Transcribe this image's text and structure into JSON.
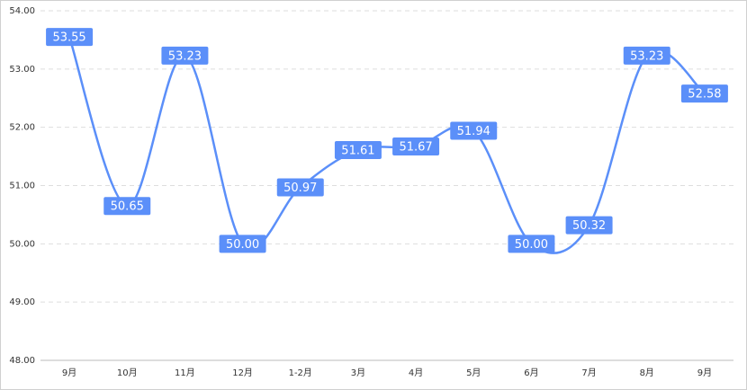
{
  "chart_data": {
    "type": "line",
    "categories": [
      "9月",
      "10月",
      "11月",
      "12月",
      "1-2月",
      "3月",
      "4月",
      "5月",
      "6月",
      "7月",
      "8月",
      "9月"
    ],
    "series": [
      {
        "color": "#5b8ff9",
        "values": [
          53.55,
          50.65,
          53.23,
          50,
          50.97,
          51.61,
          51.67,
          51.94,
          50,
          50.32,
          53.23,
          52.58
        ],
        "value_labels": [
          "53.55",
          "50.65",
          "53.23",
          "50.00",
          "50.97",
          "51.61",
          "51.67",
          "51.94",
          "50.00",
          "50.32",
          "53.23",
          "52.58"
        ]
      }
    ],
    "ylim": [
      48,
      54
    ],
    "yticks": [
      {
        "value": 48,
        "label": "48.00"
      },
      {
        "value": 49,
        "label": "49.00"
      },
      {
        "value": 50,
        "label": "50.00"
      },
      {
        "value": 51,
        "label": "51.00"
      },
      {
        "value": 52,
        "label": "52.00"
      },
      {
        "value": 53,
        "label": "53.00"
      },
      {
        "value": 54,
        "label": "54.00"
      }
    ],
    "grid": true,
    "smooth": true
  }
}
